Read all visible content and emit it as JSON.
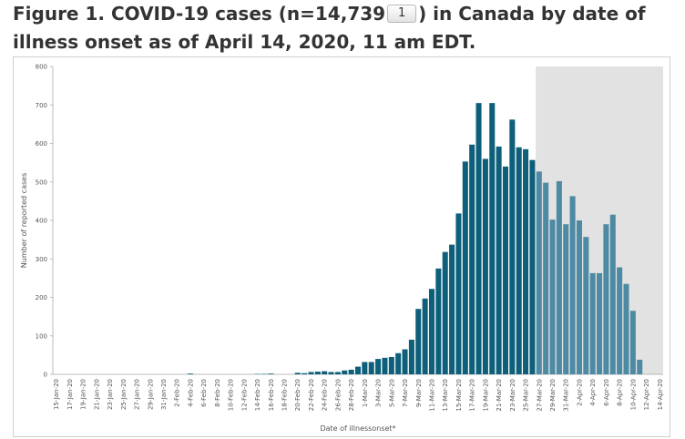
{
  "figure": {
    "title_before": "Figure 1. COVID-19 cases (n=14,739",
    "footnote_label": "1",
    "title_after": ") in Canada by date of illness onset as of April 14, 2020, 11 am EDT."
  },
  "chart_data": {
    "type": "bar",
    "xlabel": "Date of illnessonset*",
    "ylabel": "Number of reported cases",
    "ylim": [
      0,
      800
    ],
    "yticks": [
      0,
      100,
      200,
      300,
      400,
      500,
      600,
      700,
      800
    ],
    "grid": false,
    "shaded_region": {
      "from": "27-Mar-20",
      "to": "14-Apr-20"
    },
    "colors": {
      "bar": "#0d5f7a",
      "bar_shaded": "#4d8aa3",
      "shade": "#e2e2e2"
    },
    "categories": [
      "15-Jan-20",
      "16-Jan-20",
      "17-Jan-20",
      "18-Jan-20",
      "19-Jan-20",
      "20-Jan-20",
      "21-Jan-20",
      "22-Jan-20",
      "23-Jan-20",
      "24-Jan-20",
      "25-Jan-20",
      "26-Jan-20",
      "27-Jan-20",
      "28-Jan-20",
      "29-Jan-20",
      "30-Jan-20",
      "31-Jan-20",
      "1-Feb-20",
      "2-Feb-20",
      "3-Feb-20",
      "4-Feb-20",
      "5-Feb-20",
      "6-Feb-20",
      "7-Feb-20",
      "8-Feb-20",
      "9-Feb-20",
      "10-Feb-20",
      "11-Feb-20",
      "12-Feb-20",
      "13-Feb-20",
      "14-Feb-20",
      "15-Feb-20",
      "16-Feb-20",
      "17-Feb-20",
      "18-Feb-20",
      "19-Feb-20",
      "20-Feb-20",
      "21-Feb-20",
      "22-Feb-20",
      "23-Feb-20",
      "24-Feb-20",
      "25-Feb-20",
      "26-Feb-20",
      "27-Feb-20",
      "28-Feb-20",
      "29-Feb-20",
      "1-Mar-20",
      "2-Mar-20",
      "3-Mar-20",
      "4-Mar-20",
      "5-Mar-20",
      "6-Mar-20",
      "7-Mar-20",
      "8-Mar-20",
      "9-Mar-20",
      "10-Mar-20",
      "11-Mar-20",
      "12-Mar-20",
      "13-Mar-20",
      "14-Mar-20",
      "15-Mar-20",
      "16-Mar-20",
      "17-Mar-20",
      "18-Mar-20",
      "19-Mar-20",
      "20-Mar-20",
      "21-Mar-20",
      "22-Mar-20",
      "23-Mar-20",
      "24-Mar-20",
      "25-Mar-20",
      "26-Mar-20",
      "27-Mar-20",
      "28-Mar-20",
      "29-Mar-20",
      "30-Mar-20",
      "31-Mar-20",
      "1-Apr-20",
      "2-Apr-20",
      "3-Apr-20",
      "4-Apr-20",
      "5-Apr-20",
      "6-Apr-20",
      "7-Apr-20",
      "8-Apr-20",
      "9-Apr-20",
      "10-Apr-20",
      "11-Apr-20",
      "12-Apr-20",
      "13-Apr-20",
      "14-Apr-20"
    ],
    "values": [
      0,
      0,
      0,
      0,
      0,
      0,
      0,
      0,
      0,
      0,
      0,
      0,
      0,
      0,
      0,
      0,
      0,
      0,
      0,
      0,
      2,
      0,
      0,
      0,
      0,
      0,
      0,
      0,
      0,
      0,
      1,
      1,
      2,
      0,
      0,
      0,
      4,
      3,
      6,
      7,
      8,
      6,
      6,
      10,
      12,
      20,
      32,
      32,
      40,
      43,
      45,
      55,
      65,
      90,
      170,
      197,
      222,
      275,
      318,
      337,
      418,
      553,
      597,
      705,
      560,
      705,
      592,
      540,
      662,
      590,
      585,
      557,
      527,
      498,
      402,
      502,
      390,
      463,
      400,
      357,
      263,
      263,
      390,
      415,
      278,
      235,
      165,
      38,
      0,
      0,
      0
    ],
    "x_tick_labels": [
      "15-Jan-20",
      "17-Jan-20",
      "19-Jan-20",
      "21-Jan-20",
      "23-Jan-20",
      "25-Jan-20",
      "27-Jan-20",
      "29-Jan-20",
      "31-Jan-20",
      "2-Feb-20",
      "4-Feb-20",
      "6-Feb-20",
      "8-Feb-20",
      "10-Feb-20",
      "12-Feb-20",
      "14-Feb-20",
      "16-Feb-20",
      "18-Feb-20",
      "20-Feb-20",
      "22-Feb-20",
      "24-Feb-20",
      "26-Feb-20",
      "28-Feb-20",
      "1-Mar-20",
      "3-Mar-20",
      "5-Mar-20",
      "7-Mar-20",
      "9-Mar-20",
      "11-Mar-20",
      "13-Mar-20",
      "15-Mar-20",
      "17-Mar-20",
      "19-Mar-20",
      "21-Mar-20",
      "23-Mar-20",
      "25-Mar-20",
      "27-Mar-20",
      "29-Mar-20",
      "31-Mar-20",
      "2-Apr-20",
      "4-Apr-20",
      "6-Apr-20",
      "8-Apr-20",
      "10-Apr-20",
      "12-Apr-20",
      "14-Apr-20"
    ]
  }
}
